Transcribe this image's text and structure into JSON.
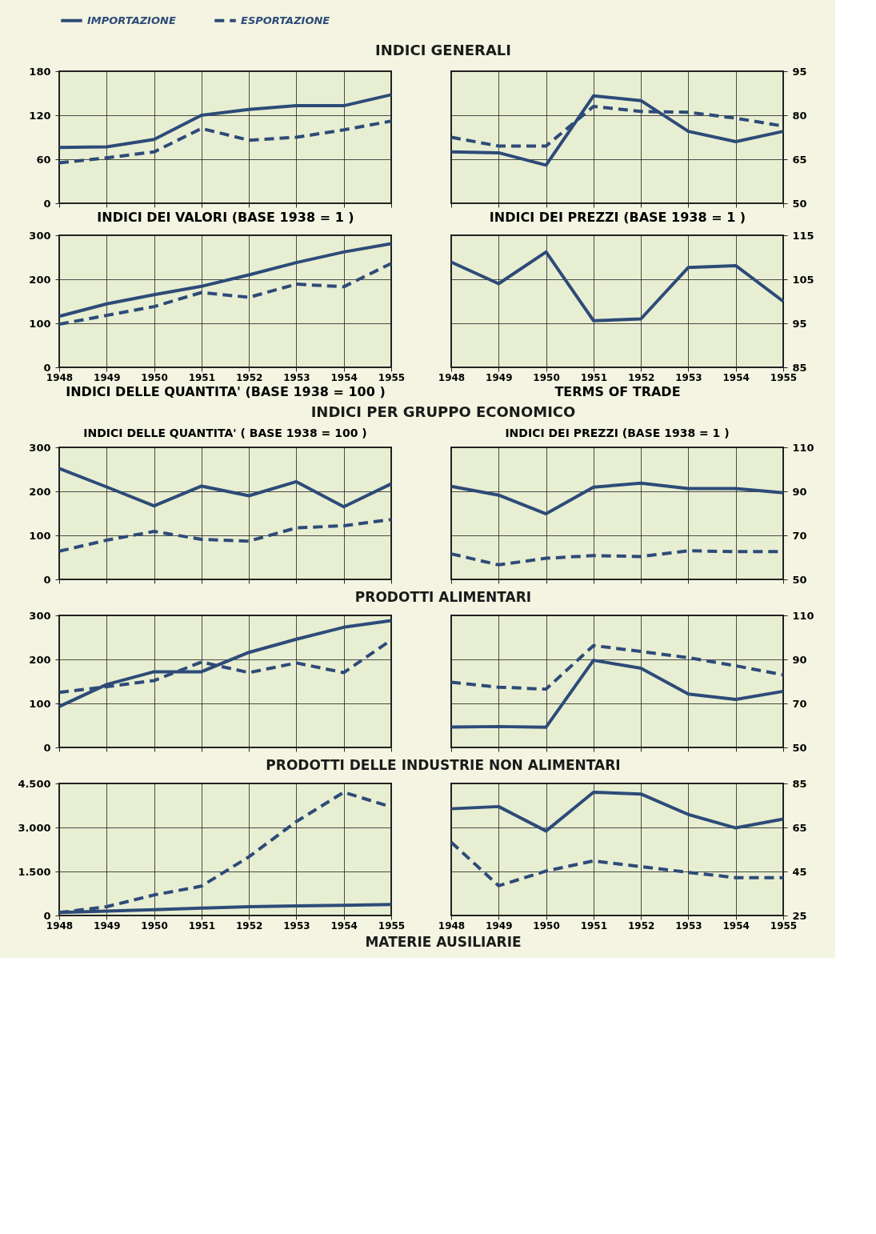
{
  "chart_data": [
    {
      "type": "line",
      "title": "INDICI GENERALI",
      "xlabel": "INDICI DEI VALORI (BASE 1938 = 1 )",
      "categories": [
        "1948",
        "1949",
        "1950",
        "1951",
        "1952",
        "1953",
        "1954",
        "1955"
      ],
      "ylim": [
        0,
        180
      ],
      "yticks": [
        0,
        60,
        120,
        180
      ],
      "grid": true,
      "tick_labels": "y",
      "legend": "top",
      "series": [
        {
          "name": "IMPORTAZIONE",
          "color": "#2d4b78",
          "line_style": "solid",
          "values": [
            76,
            77,
            87,
            120,
            128,
            133,
            133,
            148
          ]
        },
        {
          "name": "ESPORTAZIONE",
          "color": "#2d4b78",
          "line_style": "dashed",
          "values": [
            55,
            62,
            70,
            102,
            86,
            90,
            100,
            112
          ]
        }
      ]
    },
    {
      "type": "line",
      "xlabel": "INDICI DEI PREZZI (BASE 1938 = 1 )",
      "categories": [
        "1948",
        "1949",
        "1950",
        "1951",
        "1952",
        "1953",
        "1954",
        "1955"
      ],
      "ylim": [
        50,
        95
      ],
      "yticks": [
        50,
        65,
        80,
        95
      ],
      "grid": true,
      "tick_labels": "y",
      "series": [
        {
          "color": "#2d4b78",
          "line_style": "solid",
          "values": [
            67.5,
            67.2,
            63,
            86.6,
            85,
            74.5,
            71,
            74.5
          ]
        },
        {
          "color": "#2d4b78",
          "line_style": "dashed",
          "values": [
            72.5,
            69.5,
            69.5,
            83,
            81.3,
            81,
            79,
            76.3
          ]
        }
      ]
    },
    {
      "type": "line",
      "xlabel": "INDICI DELLE QUANTITA' (BASE 1938 = 100 )",
      "categories": [
        "1948",
        "1949",
        "1950",
        "1951",
        "1952",
        "1953",
        "1954",
        "1955"
      ],
      "ylim": [
        0,
        300
      ],
      "yticks": [
        0,
        100,
        200,
        300
      ],
      "grid": true,
      "series": [
        {
          "color": "#2d4b78",
          "line_style": "solid",
          "values": [
            116,
            144,
            165,
            184,
            210,
            238,
            262,
            281
          ]
        },
        {
          "color": "#2d4b78",
          "line_style": "dashed",
          "values": [
            98,
            118,
            138,
            170,
            159,
            189,
            183,
            236
          ]
        }
      ]
    },
    {
      "type": "line",
      "xlabel": "TERMS OF TRADE",
      "categories": [
        "1948",
        "1949",
        "1950",
        "1951",
        "1952",
        "1953",
        "1954",
        "1955"
      ],
      "ylim": [
        85,
        115
      ],
      "yticks": [
        85,
        95,
        105,
        115
      ],
      "grid": true,
      "series": [
        {
          "color": "#2d4b78",
          "line_style": "solid",
          "values": [
            108.9,
            104,
            111.2,
            95.6,
            96,
            107.7,
            108.1,
            100
          ]
        }
      ]
    },
    {
      "type": "line",
      "title": "INDICI PER GRUPPO ECONOMICO",
      "subtitle": "INDICI DELLE QUANTITA' ( BASE 1938 = 100 )",
      "annotations": [
        "PRODOTTI ALIMENTARI"
      ],
      "categories": [
        "1948",
        "1949",
        "1950",
        "1951",
        "1952",
        "1953",
        "1954",
        "1955"
      ],
      "ylim": [
        0,
        300
      ],
      "yticks": [
        0,
        100,
        200,
        300
      ],
      "grid": true,
      "tick_labels": "y",
      "series": [
        {
          "color": "#2d4b78",
          "line_style": "solid",
          "values": [
            252,
            210,
            167,
            212,
            190,
            222,
            165,
            217
          ]
        },
        {
          "color": "#2d4b78",
          "line_style": "dashed",
          "values": [
            64,
            89,
            109,
            91,
            87,
            117,
            122,
            136
          ]
        }
      ]
    },
    {
      "type": "line",
      "subtitle": "INDICI DEI PREZZI (BASE 1938 = 1 )",
      "categories": [
        "1948",
        "1949",
        "1950",
        "1951",
        "1952",
        "1953",
        "1954",
        "1955"
      ],
      "ylim": [
        50,
        110
      ],
      "yticks": [
        50,
        70,
        90,
        110
      ],
      "grid": true,
      "tick_labels": "y",
      "series": [
        {
          "color": "#2d4b78",
          "line_style": "solid",
          "values": [
            92.3,
            88.3,
            79.8,
            91.9,
            93.7,
            91.3,
            91.3,
            89.4
          ]
        },
        {
          "color": "#2d4b78",
          "line_style": "dashed",
          "values": [
            61.6,
            56.6,
            59.6,
            60.8,
            60.4,
            63,
            62.6,
            62.6
          ]
        }
      ]
    },
    {
      "type": "line",
      "annotations": [
        "PRODOTTI DELLE INDUSTRIE NON ALIMENTARI"
      ],
      "categories": [
        "1948",
        "1949",
        "1950",
        "1951",
        "1952",
        "1953",
        "1954",
        "1955"
      ],
      "ylim": [
        0,
        300
      ],
      "yticks": [
        0,
        100,
        200,
        300
      ],
      "grid": true,
      "tick_labels": "y",
      "series": [
        {
          "color": "#2d4b78",
          "line_style": "solid",
          "values": [
            93,
            143,
            172,
            172,
            216,
            246,
            273,
            288
          ]
        },
        {
          "color": "#2d4b78",
          "line_style": "dashed",
          "values": [
            125,
            138,
            152,
            194,
            170,
            192,
            170,
            244
          ]
        }
      ]
    },
    {
      "type": "line",
      "categories": [
        "1948",
        "1949",
        "1950",
        "1951",
        "1952",
        "1953",
        "1954",
        "1955"
      ],
      "ylim": [
        50,
        110
      ],
      "yticks": [
        50,
        70,
        90,
        110
      ],
      "grid": true,
      "tick_labels": "y",
      "series": [
        {
          "color": "#2d4b78",
          "line_style": "solid",
          "values": [
            59.3,
            59.5,
            59.2,
            89.6,
            86,
            74.3,
            71.8,
            75.5
          ]
        },
        {
          "color": "#2d4b78",
          "line_style": "dashed",
          "values": [
            79.6,
            77.4,
            76.5,
            96.3,
            93.6,
            90.8,
            87.1,
            83
          ]
        }
      ]
    },
    {
      "type": "line",
      "annotations": [
        "MATERIE AUSILIARIE"
      ],
      "categories": [
        "1948",
        "1949",
        "1950",
        "1951",
        "1952",
        "1953",
        "1954",
        "1955"
      ],
      "ylim": [
        0,
        4500
      ],
      "yticks": [
        0,
        {
          "value": 1500,
          "label": "1.500"
        },
        {
          "value": 3000,
          "label": "3.000"
        },
        {
          "value": 4500,
          "label": "4.500"
        }
      ],
      "grid": true,
      "series": [
        {
          "color": "#2d4b78",
          "line_style": "solid",
          "values": [
            100,
            150,
            200,
            250,
            300,
            325,
            350,
            375
          ]
        },
        {
          "color": "#2d4b78",
          "line_style": "dashed",
          "values": [
            100,
            300,
            700,
            1000,
            2000,
            3200,
            4200,
            3700
          ]
        }
      ]
    },
    {
      "type": "line",
      "categories": [
        "1948",
        "1949",
        "1950",
        "1951",
        "1952",
        "1953",
        "1954",
        "1955"
      ],
      "ylim": [
        25,
        85
      ],
      "yticks": [
        25,
        45,
        65,
        85
      ],
      "grid": true,
      "series": [
        {
          "color": "#2d4b78",
          "line_style": "solid",
          "values": [
            73.5,
            74.5,
            63.4,
            81,
            80.2,
            70.9,
            64.8,
            68.8
          ]
        },
        {
          "color": "#2d4b78",
          "line_style": "dashed",
          "values": [
            58.3,
            38.5,
            45.2,
            49.8,
            47.2,
            44.6,
            42.2,
            42.2
          ]
        }
      ]
    }
  ]
}
